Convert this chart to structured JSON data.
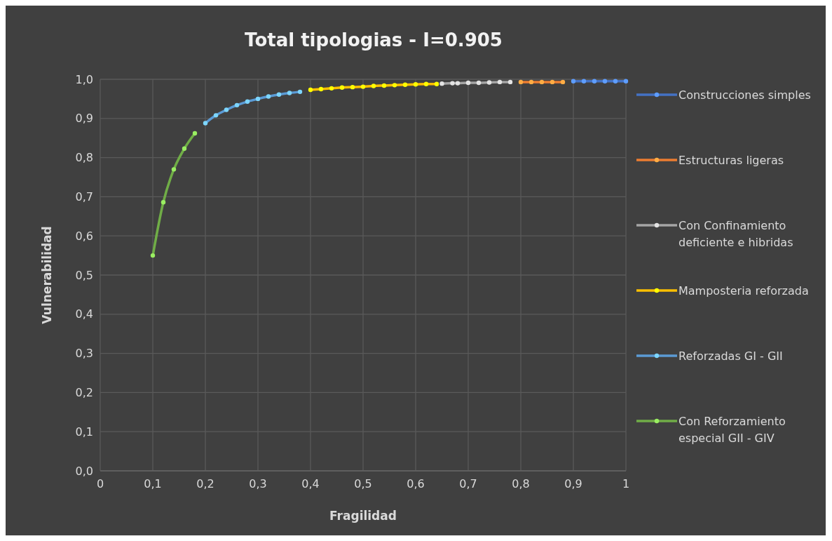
{
  "chart_data": {
    "type": "line",
    "title": "Total tipologias - I=0.905",
    "xlabel": "Fragilidad",
    "ylabel": "Vulnerabilidad",
    "xlim": [
      0,
      1
    ],
    "ylim": [
      0,
      1
    ],
    "xticks": [
      0,
      {
        "value": 0.1,
        "label": "0,1"
      },
      {
        "value": 0.2,
        "label": "0,2"
      },
      {
        "value": 0.3,
        "label": "0,3"
      },
      {
        "value": 0.4,
        "label": "0,4"
      },
      {
        "value": 0.5,
        "label": "0,5"
      },
      {
        "value": 0.6,
        "label": "0,6"
      },
      {
        "value": 0.7,
        "label": "0,7"
      },
      {
        "value": 0.8,
        "label": "0,8"
      },
      {
        "value": 0.9,
        "label": "0,9"
      },
      1
    ],
    "yticks": [
      {
        "value": 0,
        "label": "0,0"
      },
      {
        "value": 0.1,
        "label": "0,1"
      },
      {
        "value": 0.2,
        "label": "0,2"
      },
      {
        "value": 0.3,
        "label": "0,3"
      },
      {
        "value": 0.4,
        "label": "0,4"
      },
      {
        "value": 0.5,
        "label": "0,5"
      },
      {
        "value": 0.6,
        "label": "0,6"
      },
      {
        "value": 0.7,
        "label": "0,7"
      },
      {
        "value": 0.8,
        "label": "0,8"
      },
      {
        "value": 0.9,
        "label": "0,9"
      },
      {
        "value": 1,
        "label": "1,0"
      }
    ],
    "grid": true,
    "legend": "right",
    "marker": "circle",
    "line_style": "solid",
    "series": [
      {
        "name": "Construcciones simples",
        "color": "#4472c4",
        "x": [
          0.9,
          0.92,
          0.94,
          0.96,
          0.98,
          1.0
        ],
        "values": [
          0.995,
          0.995,
          0.995,
          0.995,
          0.995,
          0.995
        ]
      },
      {
        "name": "Estructuras ligeras",
        "color": "#ed7d31",
        "x": [
          0.8,
          0.82,
          0.84,
          0.86,
          0.88
        ],
        "values": [
          0.993,
          0.993,
          0.993,
          0.993,
          0.993
        ]
      },
      {
        "name": "Con Confinamiento deficiente e hibridas",
        "color": "#a5a5a5",
        "x": [
          0.65,
          0.67,
          0.68,
          0.7,
          0.72,
          0.74,
          0.76,
          0.78
        ],
        "values": [
          0.989,
          0.99,
          0.99,
          0.991,
          0.991,
          0.992,
          0.993,
          0.993
        ]
      },
      {
        "name": "Mamposteria reforzada",
        "color": "#ffc000",
        "x": [
          0.4,
          0.42,
          0.44,
          0.46,
          0.48,
          0.5,
          0.52,
          0.54,
          0.56,
          0.58,
          0.6,
          0.62,
          0.64
        ],
        "values": [
          0.973,
          0.975,
          0.977,
          0.979,
          0.98,
          0.981,
          0.983,
          0.984,
          0.985,
          0.986,
          0.987,
          0.988,
          0.988
        ]
      },
      {
        "name": "Reforzadas GI - GII",
        "color": "#5b9bd5",
        "x": [
          0.2,
          0.22,
          0.24,
          0.26,
          0.28,
          0.3,
          0.32,
          0.34,
          0.36,
          0.38
        ],
        "values": [
          0.888,
          0.908,
          0.922,
          0.934,
          0.943,
          0.95,
          0.956,
          0.961,
          0.965,
          0.968
        ]
      },
      {
        "name": "Con Reforzamiento especial GII - GIV",
        "color": "#70ad47",
        "x": [
          0.1,
          0.12,
          0.14,
          0.16,
          0.18
        ],
        "values": [
          0.55,
          0.686,
          0.77,
          0.823,
          0.862
        ]
      }
    ]
  }
}
